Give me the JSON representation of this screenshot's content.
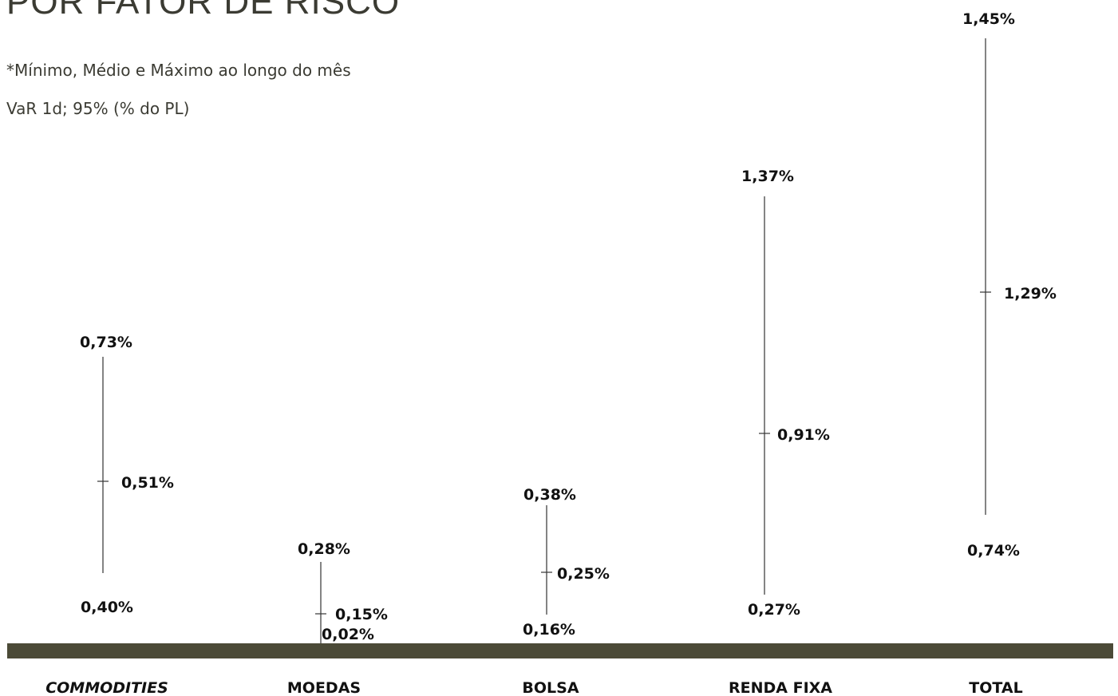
{
  "title": "POR FATOR DE RISCO",
  "notes": {
    "line1": "*Mínimo, Médio e Máximo ao longo do mês",
    "line2": "VaR 1d; 95% (% do PL)"
  },
  "colors": {
    "baseline": "#4b4a37",
    "line": "#333333",
    "text": "#111111"
  },
  "chart_data": {
    "type": "range",
    "categories": [
      "COMMODITIES",
      "MOEDAS",
      "BOLSA",
      "RENDA FIXA",
      "TOTAL"
    ],
    "series": [
      {
        "values": [
          0.4,
          0.02,
          0.16,
          0.27,
          0.74
        ]
      },
      {
        "values": [
          0.51,
          0.15,
          0.25,
          0.91,
          1.29
        ]
      },
      {
        "values": [
          0.73,
          0.28,
          0.38,
          1.37,
          1.45
        ]
      }
    ],
    "labels": {
      "min": [
        "0,40%",
        "0,02%",
        "0,16%",
        "0,27%",
        "0,74%"
      ],
      "avg": [
        "0,51%",
        "0,15%",
        "0,25%",
        "0,91%",
        "1,29%"
      ],
      "max": [
        "0,73%",
        "0,28%",
        "0,38%",
        "1,37%",
        "1,45%"
      ]
    },
    "ylim": [
      0,
      1.45
    ],
    "grid": false,
    "legend": "none"
  }
}
